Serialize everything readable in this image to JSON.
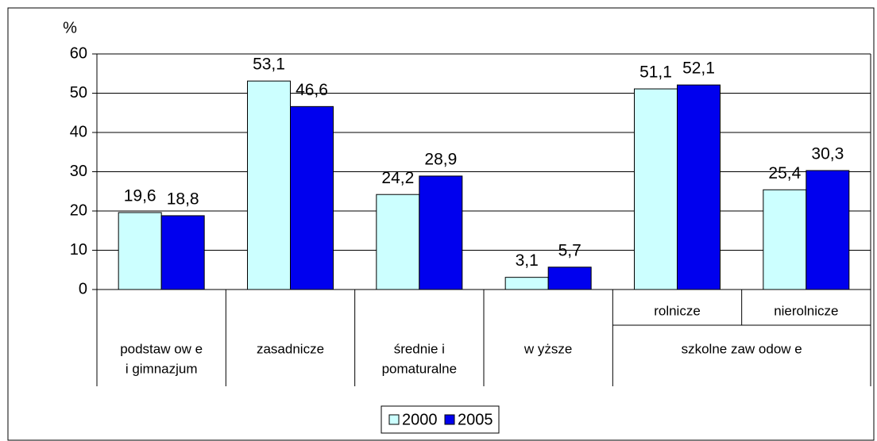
{
  "chart_data": {
    "type": "bar",
    "y_unit": "%",
    "categories": [
      null,
      null,
      null,
      null,
      "rolnicze",
      "nierolnicze"
    ],
    "category_groups": [
      {
        "lines": [
          "podstaw ow e",
          "i gimnazjum"
        ],
        "span": 1
      },
      {
        "lines": [
          "zasadnicze"
        ],
        "span": 1
      },
      {
        "lines": [
          "średnie i",
          "pomaturalne"
        ],
        "span": 1
      },
      {
        "lines": [
          "w yższe"
        ],
        "span": 1
      },
      {
        "lines": [
          "szkolne zaw odow e"
        ],
        "span": 2
      }
    ],
    "series": [
      {
        "name": "2000",
        "color": "#ccffff",
        "values": [
          19.6,
          53.1,
          24.2,
          3.1,
          51.1,
          25.4
        ],
        "value_labels": [
          "19,6",
          "53,1",
          "24,2",
          "3,1",
          "51,1",
          "25,4"
        ]
      },
      {
        "name": "2005",
        "color": "#0000ee",
        "values": [
          18.8,
          46.6,
          28.9,
          5.7,
          52.1,
          30.3
        ],
        "value_labels": [
          "18,8",
          "46,6",
          "28,9",
          "5,7",
          "52,1",
          "30,3"
        ]
      }
    ],
    "ylim": [
      0,
      60
    ],
    "yticks": [
      0,
      10,
      20,
      30,
      40,
      50,
      60
    ],
    "grid": true,
    "legend": "bottom"
  }
}
